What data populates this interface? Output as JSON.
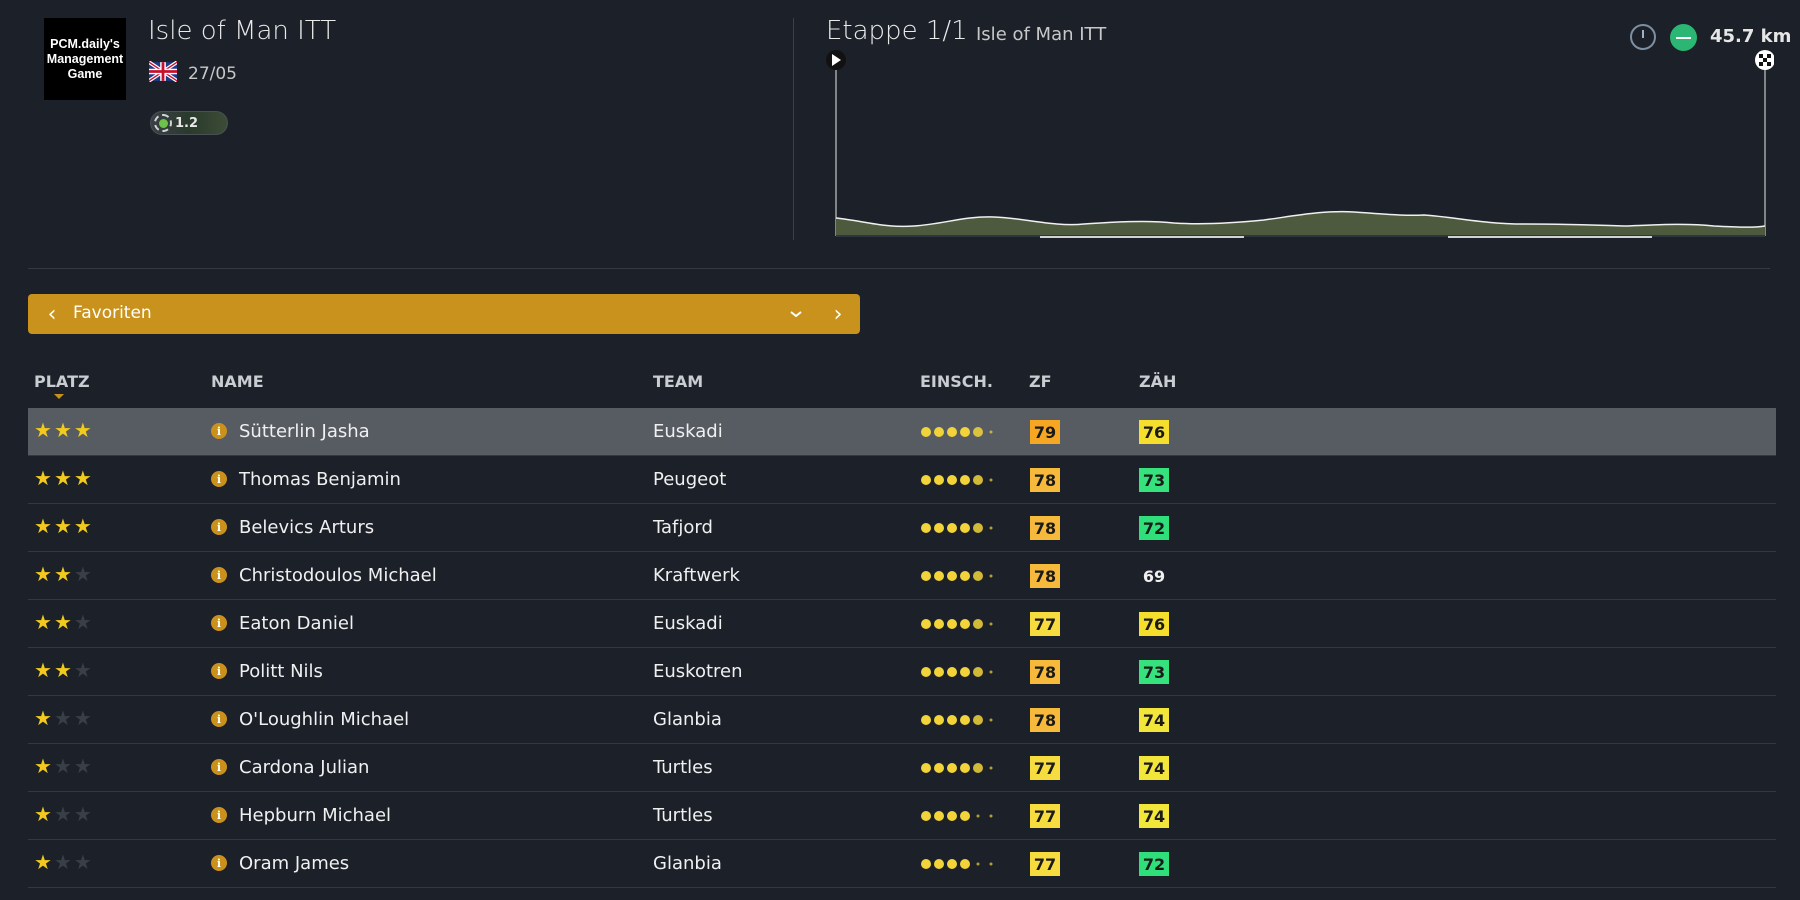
{
  "header": {
    "logo_text": "PCM.daily's Management Game",
    "race_title": "Isle of Man ITT",
    "flag_icon": "uk-flag-icon",
    "date": "27/05",
    "category_value": "1.2",
    "stage_title": "Etappe 1/1",
    "stage_name": "Isle of Man ITT",
    "stage_type_icon": "stopwatch-icon",
    "terrain_icon": "flat-terrain-icon",
    "distance": "45.7 km"
  },
  "selector": {
    "label": "Favoriten",
    "prev_icon": "chevron-left-icon",
    "dropdown_icon": "chevron-down-icon",
    "next_icon": "chevron-right-icon",
    "accent_color": "#c9921c"
  },
  "table": {
    "columns": {
      "platz": "PLATZ",
      "name": "NAME",
      "team": "TEAM",
      "einsch": "EINSCH.",
      "zf": "ZF",
      "zah": "ZÄH"
    },
    "rows": [
      {
        "stars": 3,
        "name": "Sütterlin Jasha",
        "team": "Euskadi",
        "rating_full": 4,
        "rating_half": 1,
        "zf": "79",
        "zah": "76"
      },
      {
        "stars": 3,
        "name": "Thomas Benjamin",
        "team": "Peugeot",
        "rating_full": 4,
        "rating_half": 1,
        "zf": "78",
        "zah": "73"
      },
      {
        "stars": 3,
        "name": "Belevics Arturs",
        "team": "Tafjord",
        "rating_full": 4,
        "rating_half": 1,
        "zf": "78",
        "zah": "72"
      },
      {
        "stars": 2,
        "name": "Christodoulos Michael",
        "team": "Kraftwerk",
        "rating_full": 4,
        "rating_half": 1,
        "zf": "78",
        "zah": "69"
      },
      {
        "stars": 2,
        "name": "Eaton Daniel",
        "team": "Euskadi",
        "rating_full": 4,
        "rating_half": 1,
        "zf": "77",
        "zah": "76"
      },
      {
        "stars": 2,
        "name": "Politt Nils",
        "team": "Euskotren",
        "rating_full": 4,
        "rating_half": 1,
        "zf": "78",
        "zah": "73"
      },
      {
        "stars": 1,
        "name": "O'Loughlin Michael",
        "team": "Glanbia",
        "rating_full": 4,
        "rating_half": 1,
        "zf": "78",
        "zah": "74"
      },
      {
        "stars": 1,
        "name": "Cardona Julian",
        "team": "Turtles",
        "rating_full": 4,
        "rating_half": 1,
        "zf": "77",
        "zah": "74"
      },
      {
        "stars": 1,
        "name": "Hepburn Michael",
        "team": "Turtles",
        "rating_full": 4,
        "rating_half": 0,
        "zf": "77",
        "zah": "74"
      },
      {
        "stars": 1,
        "name": "Oram James",
        "team": "Glanbia",
        "rating_full": 4,
        "rating_half": 0,
        "zf": "77",
        "zah": "72"
      }
    ]
  },
  "colors": {
    "star": "#f2c91d",
    "zf_79": "#f5a623",
    "zf_78": "#f6b93b",
    "zf_77": "#f7dc3f",
    "zah_76": "#f5df2c",
    "zah_74": "#f2e63a",
    "zah_73": "#35e27c",
    "zah_72": "#2fe07a",
    "rating_dot": "#f2d43a"
  }
}
